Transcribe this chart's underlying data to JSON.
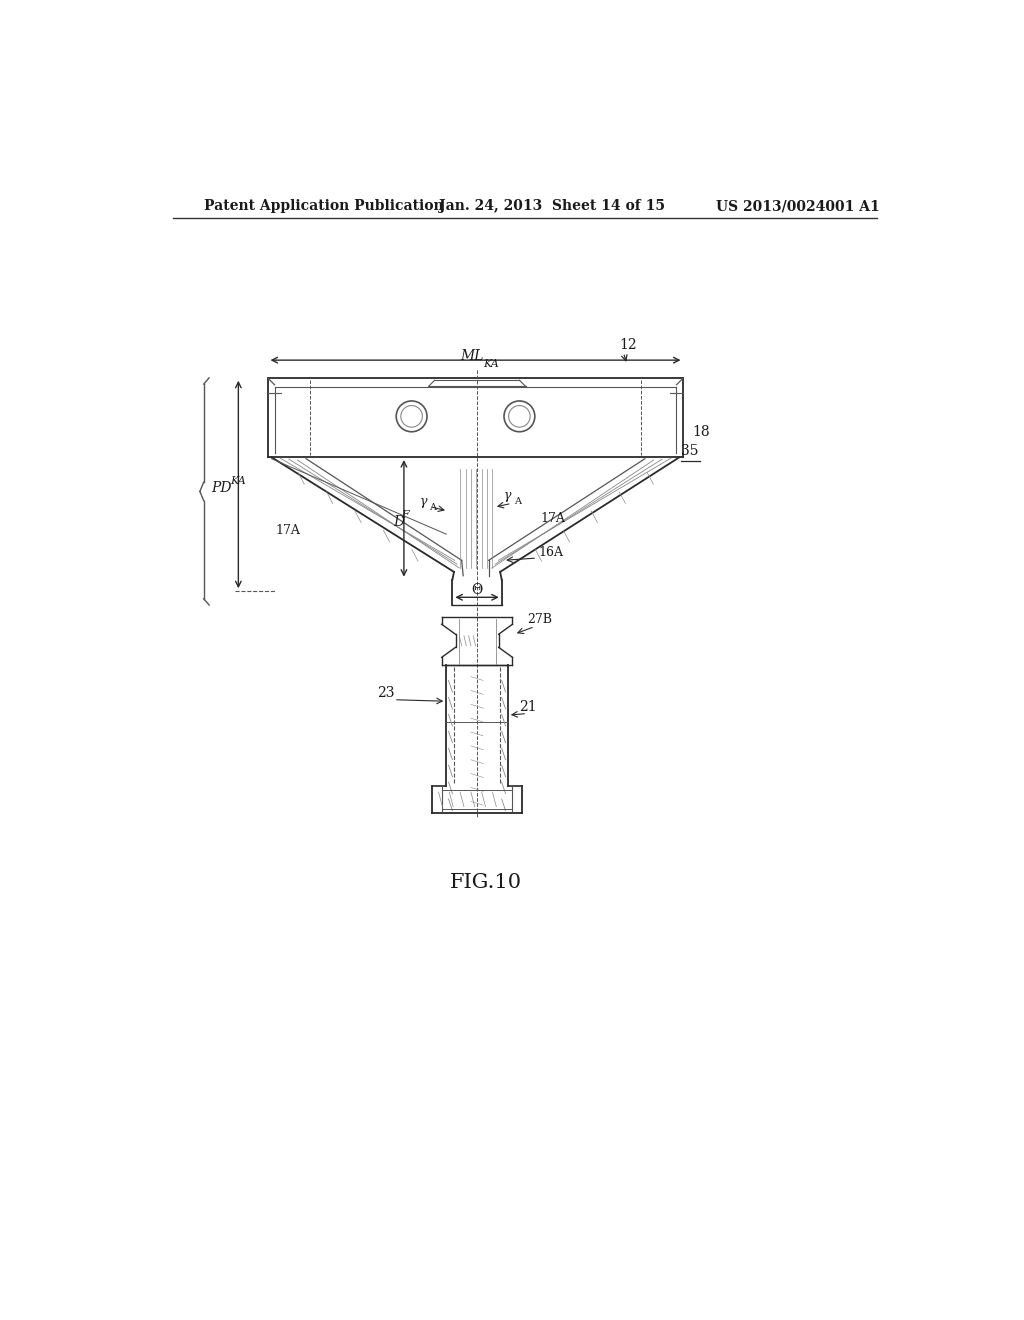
{
  "bg_color": "#ffffff",
  "line_color": "#2a2a2a",
  "detail_color": "#555555",
  "light_color": "#888888",
  "header_left": "Patent Application Publication",
  "header_mid": "Jan. 24, 2013  Sheet 14 of 15",
  "header_right": "US 2013/0024001 A1",
  "fig_label": "FIG.10",
  "label_12": "12",
  "label_18": "18",
  "label_35": "35",
  "label_17A_left": "17A",
  "label_17A_right": "17A",
  "label_16A": "16A",
  "label_MLKA_1": "ML",
  "label_MLKA_2": "KA",
  "label_PDKA_1": "PD",
  "label_PDKA_2": "KA",
  "label_DF_1": "D",
  "label_DF_2": "F",
  "label_theta": "Θ",
  "label_gammaA_left": "γ",
  "label_gammaA_left2": "A",
  "label_gammaA_right": "γ",
  "label_gammaA_right2": "A",
  "label_27B": "27B",
  "label_23": "23",
  "label_21": "21"
}
